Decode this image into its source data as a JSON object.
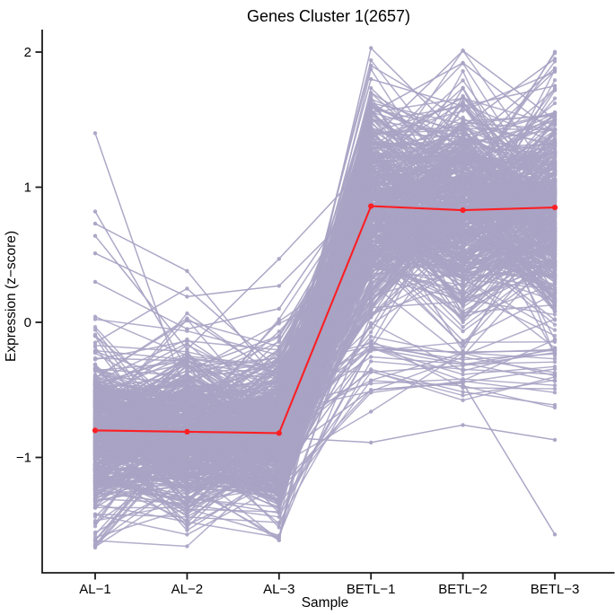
{
  "page": {
    "background": "#ffffff"
  },
  "chart_data": {
    "type": "line",
    "subtype": "gene-expression-profile-bundle",
    "title": "Genes Cluster 1(2657)",
    "cluster_name": "Genes Cluster 1",
    "gene_count": 2657,
    "xlabel": "Sample",
    "ylabel": "Expression (z−score)",
    "categories": [
      "AL−1",
      "AL−2",
      "AL−3",
      "BETL−1",
      "BETL−2",
      "BETL−3"
    ],
    "y_ticks": [
      {
        "v": 2,
        "label": "2"
      },
      {
        "v": 1,
        "label": "1"
      },
      {
        "v": 0,
        "label": "0"
      },
      {
        "v": -1,
        "label": "−1"
      }
    ],
    "ylim": [
      -1.85,
      2.17
    ],
    "grid": false,
    "legend": "none",
    "colors": {
      "gene_line": "#a9a3c4",
      "mean_line": "#fb1f24",
      "axis": "#1a1a1a",
      "text": "#000000",
      "background": "#ffffff"
    },
    "mean_series": {
      "name": "cluster-mean",
      "values": [
        -0.8,
        -0.81,
        -0.82,
        0.86,
        0.83,
        0.85
      ]
    },
    "envelope": {
      "AL_dense_band": [
        -1.24,
        -0.4
      ],
      "AL_full_range": [
        -1.67,
        1.4
      ],
      "BETL_dense_band": [
        0.3,
        2.03
      ],
      "BETL_full_range": [
        -1.57,
        2.03
      ],
      "upper_peak_values": [
        2.03,
        2.01,
        1.95
      ],
      "upper_dip_between_peaks": 1.3
    },
    "render_hints": {
      "seed": 7,
      "n_core": 470,
      "n_low_subpop": 22,
      "core": {
        "low": {
          "mean": -0.82,
          "gene_sd": 0.16,
          "noise_sd": 0.26,
          "min": -1.67,
          "max": 0.3
        },
        "high": {
          "mean": 0.85,
          "gene_sd": 0.18,
          "noise_sd": 0.34,
          "min": -0.25,
          "max": 2.03
        }
      },
      "low_subpop": {
        "low": {
          "mean": -0.85,
          "gene_sd": 0.2,
          "noise_sd": 0.22,
          "min": -1.5,
          "max": -0.2
        },
        "high": {
          "mean": -0.36,
          "gene_sd": 0.09,
          "noise_sd": 0.13,
          "min": -0.95,
          "max": 0.1
        }
      }
    },
    "outlier_profiles": [
      [
        -0.6,
        -0.75,
        -0.9,
        2.03,
        1.35,
        1.55
      ],
      [
        -0.95,
        -0.6,
        -0.7,
        1.9,
        1.5,
        1.3
      ],
      [
        -0.5,
        -0.85,
        -1.05,
        1.35,
        2.01,
        1.5
      ],
      [
        -0.75,
        -1.0,
        -0.6,
        1.55,
        1.92,
        1.4
      ],
      [
        -0.9,
        -0.7,
        -0.8,
        1.4,
        1.45,
        1.95
      ],
      [
        -1.05,
        -0.55,
        -0.95,
        1.6,
        1.3,
        1.88
      ],
      [
        -0.65,
        -0.9,
        -0.75,
        1.8,
        1.6,
        1.75
      ],
      [
        1.4,
        -0.56,
        -0.3,
        1.3,
        1.1,
        1.25
      ],
      [
        0.82,
        -0.35,
        -0.1,
        1.05,
        1.3,
        0.95
      ],
      [
        0.73,
        0.38,
        -0.45,
        0.9,
        1.15,
        1.05
      ],
      [
        0.64,
        -0.2,
        0.47,
        1.2,
        0.85,
        1.1
      ],
      [
        0.51,
        0.19,
        0.27,
        0.95,
        1.05,
        0.9
      ],
      [
        0.3,
        -0.05,
        0.1,
        1.1,
        0.95,
        1.15
      ],
      [
        -0.15,
        0.25,
        -0.35,
        0.85,
        1.2,
        1.0
      ],
      [
        -1.1,
        -1.4,
        -1.0,
        -0.5,
        -0.45,
        -1.57
      ],
      [
        -0.7,
        -1.2,
        -0.85,
        -0.89,
        -0.76,
        -0.87
      ],
      [
        -0.95,
        -0.8,
        -1.15,
        -0.2,
        -0.22,
        -0.21
      ]
    ]
  }
}
